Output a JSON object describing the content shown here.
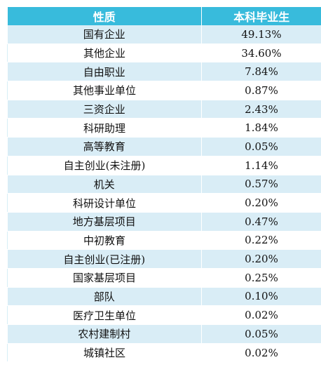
{
  "table": {
    "headers": [
      "性质",
      "本科毕业生"
    ],
    "rows": [
      [
        "国有企业",
        "49.13%"
      ],
      [
        "其他企业",
        "34.60%"
      ],
      [
        "自由职业",
        "7.84%"
      ],
      [
        "其他事业单位",
        "0.87%"
      ],
      [
        "三资企业",
        "2.43%"
      ],
      [
        "科研助理",
        "1.84%"
      ],
      [
        "高等教育",
        "0.05%"
      ],
      [
        "自主创业(未注册)",
        "1.14%"
      ],
      [
        "机关",
        "0.57%"
      ],
      [
        "科研设计单位",
        "0.20%"
      ],
      [
        "地方基层项目",
        "0.47%"
      ],
      [
        "中初教育",
        "0.22%"
      ],
      [
        "自主创业(已注册)",
        "0.20%"
      ],
      [
        "国家基层项目",
        "0.25%"
      ],
      [
        "部队",
        "0.10%"
      ],
      [
        "医疗卫生单位",
        "0.02%"
      ],
      [
        "农村建制村",
        "0.05%"
      ],
      [
        "城镇社区",
        "0.02%"
      ]
    ]
  },
  "colors": {
    "header_bg": "#38bbdc",
    "stripe_bg": "#d9edf6"
  }
}
